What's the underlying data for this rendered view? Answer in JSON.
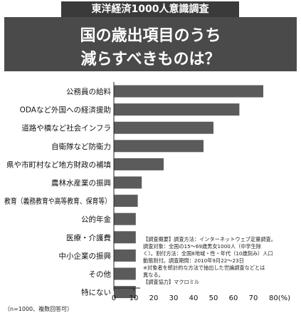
{
  "header": {
    "badge": "東洋経済1000人意識調査",
    "title_line1": "国の歳出項目のうち",
    "title_line2": "減らすべきものは？"
  },
  "colors": {
    "bar": "#5b5b5b",
    "axis": "#222222",
    "header_bg": "#4a4a4a"
  },
  "chart_data": {
    "type": "bar",
    "orientation": "horizontal",
    "title": "国の歳出項目のうち減らすべきものは？",
    "categories": [
      "公務員の給料",
      "ODAなど外国への経済援助",
      "道路や橋など社会インフラ",
      "自衛隊など防衛力",
      "県や市町村など地方財政の補填",
      "農林水産業の振興",
      "教育（義務教育や高等教育、保育等）",
      "公的年金",
      "医療・介護費",
      "中小企業の振興",
      "その他",
      "特にない"
    ],
    "values": [
      75,
      63,
      50,
      45,
      25,
      14,
      12,
      11,
      11,
      11,
      11,
      11
    ],
    "xlim": [
      0,
      80
    ],
    "xticks": [
      "0",
      "10",
      "20",
      "30",
      "40",
      "50",
      "60",
      "70",
      "80(%)"
    ],
    "grid": false,
    "legend": "none"
  },
  "note": {
    "lines": [
      "【調査概要】調査方法：インターネットウェブ定量調査。",
      "調査対象：全国の15～69歳男女1000人（中学生除",
      "く）。割付方法：全国8地域・性・年代（10歳刻み）人口",
      "動態割付。調査期間：2010年9月22～23日",
      "※対象者を統計的な方法で抽出した世論調査などとは",
      "異なる。",
      "【調査協力】マクロミル"
    ]
  },
  "footnote": "（n=1000、複数回答可）"
}
